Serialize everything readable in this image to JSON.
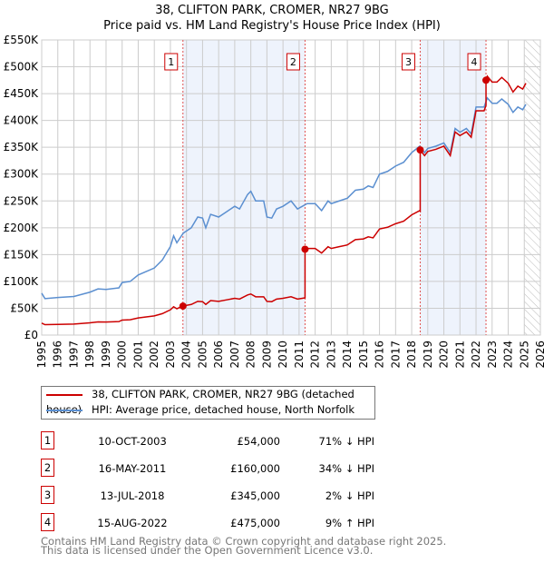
{
  "chart_data": {
    "type": "line",
    "title": "38, CLIFTON PARK, CROMER, NR27 9BG",
    "subtitle": "Price paid vs. HM Land Registry's House Price Index (HPI)",
    "xlim": [
      1995,
      2026
    ],
    "ylim": [
      0,
      550000
    ],
    "x_ticks": [
      "1995",
      "1996",
      "1997",
      "1998",
      "1999",
      "2000",
      "2001",
      "2002",
      "2003",
      "2004",
      "2005",
      "2006",
      "2007",
      "2008",
      "2009",
      "2010",
      "2011",
      "2012",
      "2013",
      "2014",
      "2015",
      "2016",
      "2017",
      "2018",
      "2019",
      "2020",
      "2021",
      "2022",
      "2023",
      "2024",
      "2025",
      "2026"
    ],
    "y_ticks": [
      "£0",
      "£50K",
      "£100K",
      "£150K",
      "£200K",
      "£250K",
      "£300K",
      "£350K",
      "£400K",
      "£450K",
      "£500K",
      "£550K"
    ],
    "grid": true,
    "colors": {
      "price": "#cc0000",
      "hpi": "#5b8fd0",
      "shade": "#eef3fc"
    },
    "hpi_series": {
      "name": "HPI: Average price, detached house, North Norfolk",
      "x": [
        1995,
        1995.2,
        1996,
        1997,
        1998,
        1998.5,
        1999,
        1999.8,
        2000,
        2000.5,
        2001,
        2002,
        2002.5,
        2003,
        2003.2,
        2003.4,
        2003.8,
        2004.3,
        2004.7,
        2005,
        2005.2,
        2005.5,
        2006,
        2006.5,
        2007,
        2007.3,
        2007.8,
        2008,
        2008.3,
        2008.8,
        2009,
        2009.3,
        2009.6,
        2010,
        2010.5,
        2010.9,
        2011.2,
        2011.5,
        2012,
        2012.4,
        2012.8,
        2013,
        2013.5,
        2014,
        2014.5,
        2015,
        2015.3,
        2015.6,
        2016,
        2016.5,
        2017,
        2017.5,
        2018,
        2018.5,
        2018.8,
        2019,
        2019.5,
        2020,
        2020.4,
        2020.7,
        2021,
        2021.4,
        2021.7,
        2022,
        2022.5,
        2022.7,
        2023,
        2023.3,
        2023.6,
        2024,
        2024.3,
        2024.6,
        2024.9,
        2025.1
      ],
      "y": [
        78000,
        68000,
        70000,
        72000,
        80000,
        86000,
        85000,
        88000,
        98000,
        100000,
        112000,
        125000,
        140000,
        165000,
        185000,
        172000,
        190000,
        200000,
        220000,
        218000,
        200000,
        225000,
        220000,
        230000,
        240000,
        235000,
        262000,
        268000,
        250000,
        250000,
        220000,
        218000,
        235000,
        240000,
        250000,
        235000,
        240000,
        245000,
        245000,
        232000,
        250000,
        245000,
        250000,
        255000,
        270000,
        272000,
        278000,
        275000,
        300000,
        305000,
        315000,
        322000,
        340000,
        352000,
        340000,
        348000,
        352000,
        358000,
        340000,
        385000,
        378000,
        385000,
        375000,
        425000,
        425000,
        442000,
        432000,
        432000,
        440000,
        430000,
        415000,
        425000,
        420000,
        430000
      ]
    },
    "price_series": {
      "name": "38, CLIFTON PARK, CROMER, NR27 9BG (detached house)"
    },
    "sales": [
      {
        "n": "1",
        "x": 2003.78,
        "date": "10-OCT-2003",
        "price": 54000,
        "price_label": "£54,000",
        "hpi": "71% ↓ HPI"
      },
      {
        "n": "2",
        "x": 2011.37,
        "date": "16-MAY-2011",
        "price": 160000,
        "price_label": "£160,000",
        "hpi": "34% ↓ HPI"
      },
      {
        "n": "3",
        "x": 2018.53,
        "date": "13-JUL-2018",
        "price": 345000,
        "price_label": "£345,000",
        "hpi": "2% ↓ HPI"
      },
      {
        "n": "4",
        "x": 2022.62,
        "date": "15-AUG-2022",
        "price": 475000,
        "price_label": "£475,000",
        "hpi": "9% ↑ HPI"
      }
    ],
    "forecast_from": 2025
  },
  "footer": [
    "Contains HM Land Registry data © Crown copyright and database right 2025.",
    "This data is licensed under the Open Government Licence v3.0."
  ]
}
